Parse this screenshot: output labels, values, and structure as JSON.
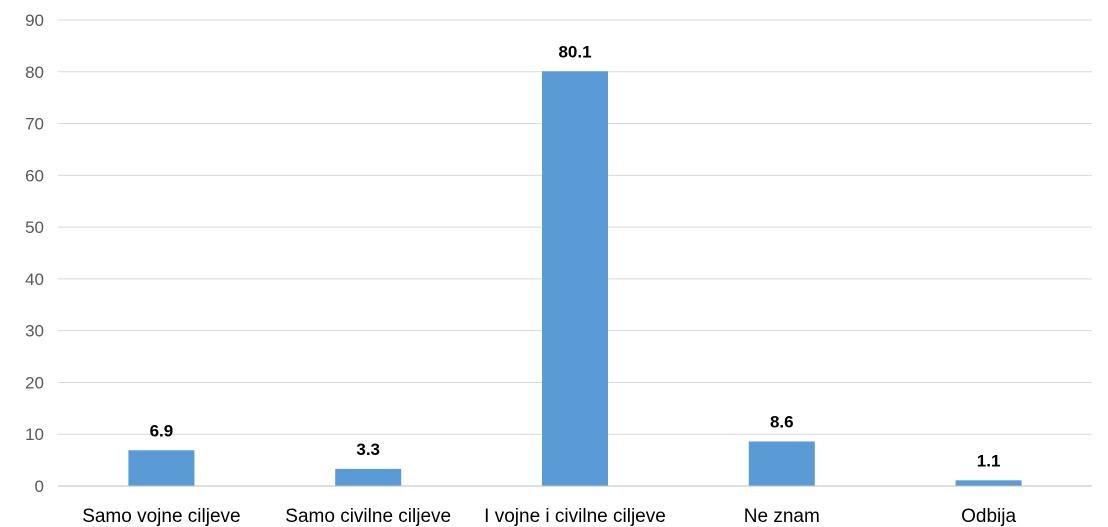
{
  "chart_data": {
    "type": "bar",
    "categories": [
      "Samo vojne ciljeve",
      "Samo civilne ciljeve",
      "I vojne i civilne ciljeve",
      "Ne znam",
      "Odbija"
    ],
    "values": [
      6.9,
      3.3,
      80.1,
      8.6,
      1.1
    ],
    "data_labels": [
      "6.9",
      "3.3",
      "80.1",
      "8.6",
      "1.1"
    ],
    "y_ticks": [
      "0",
      "10",
      "20",
      "30",
      "40",
      "50",
      "60",
      "70",
      "80",
      "90"
    ],
    "ylim": [
      0,
      90
    ],
    "grid": true,
    "legend": "none",
    "bar_color": "#5b9bd5"
  }
}
